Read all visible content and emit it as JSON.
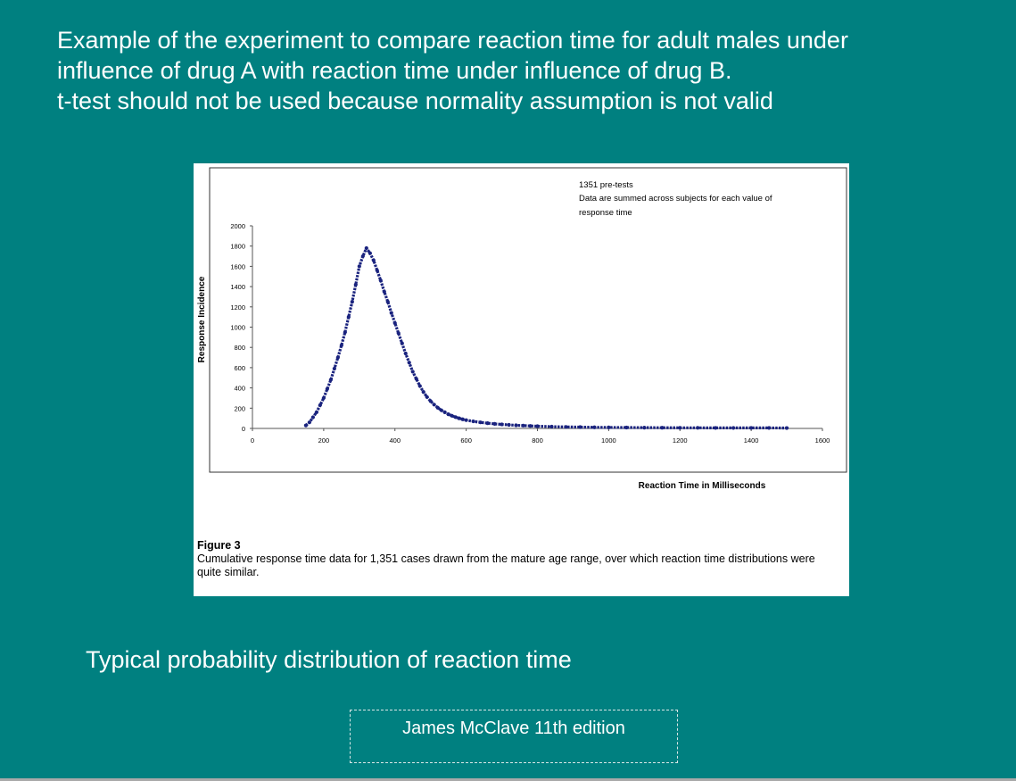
{
  "slide": {
    "title_lines": [
      "Example of the experiment to compare reaction time for adult males under",
      "influence of drug A with reaction time under influence of drug B.",
      "t-test should not be used  because  normality assumption is not valid"
    ],
    "subtitle": "Typical probability distribution of reaction time",
    "credit": "James McClave 11th edition",
    "background_color": "#008080",
    "text_color": "#ffffff"
  },
  "figure": {
    "caption_heading": "Figure 3",
    "caption_text": "Cumulative response time data for 1,351 cases drawn from the mature age range, over which reaction time distributions were quite similar."
  },
  "chart_data": {
    "type": "scatter",
    "xlabel": "Reaction Time in Milliseconds",
    "ylabel": "Response Incidence",
    "annotation_lines": [
      "1351 pre-tests",
      "Data are summed across subjects for each value of",
      "response time"
    ],
    "xlim": [
      0,
      1600
    ],
    "ylim": [
      0,
      2000
    ],
    "x_ticks": [
      0,
      200,
      400,
      600,
      800,
      1000,
      1200,
      1400,
      1600
    ],
    "y_ticks": [
      0,
      200,
      400,
      600,
      800,
      1000,
      1200,
      1400,
      1600,
      1800,
      2000
    ],
    "grid": false,
    "marker_color": "#1a237e",
    "series": [
      {
        "x": [
          150,
          160,
          170,
          180,
          190,
          200,
          210,
          220,
          230,
          240,
          250,
          260,
          270,
          280,
          290,
          300,
          310,
          320,
          330,
          340,
          350,
          360,
          370,
          380,
          390,
          400,
          410,
          420,
          430,
          440,
          450,
          460,
          470,
          480,
          490,
          500,
          510,
          520,
          530,
          540,
          550,
          560,
          570,
          580,
          590,
          600,
          620,
          640,
          660,
          680,
          700,
          720,
          740,
          760,
          780,
          800,
          840,
          880,
          920,
          960,
          1000,
          1050,
          1100,
          1150,
          1200,
          1250,
          1300,
          1350,
          1400,
          1450,
          1500
        ],
        "y": [
          30,
          60,
          110,
          160,
          230,
          300,
          390,
          480,
          590,
          700,
          820,
          950,
          1100,
          1250,
          1420,
          1600,
          1700,
          1780,
          1730,
          1660,
          1560,
          1460,
          1350,
          1250,
          1140,
          1040,
          940,
          840,
          740,
          650,
          560,
          490,
          420,
          360,
          310,
          270,
          235,
          205,
          180,
          160,
          140,
          125,
          112,
          100,
          90,
          82,
          70,
          60,
          52,
          45,
          40,
          35,
          31,
          28,
          25,
          22,
          18,
          15,
          13,
          11,
          10,
          9,
          8,
          7,
          6,
          6,
          5,
          5,
          5,
          5,
          4
        ]
      }
    ]
  }
}
